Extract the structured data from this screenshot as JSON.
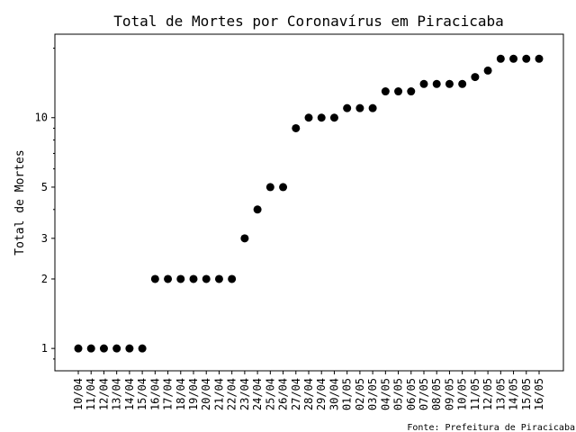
{
  "chart_data": {
    "type": "scatter",
    "title": "Total de Mortes por Coronavírus em Piracicaba",
    "xlabel": "",
    "ylabel": "Total de Mortes",
    "y_scale": "log",
    "ylim": [
      0.8,
      23
    ],
    "y_ticks": [
      1,
      2,
      3,
      5,
      10
    ],
    "grid": false,
    "marker_color": "#000000",
    "source_note": "Fonte: Prefeitura de Piracicaba",
    "x": [
      "10/04",
      "11/04",
      "12/04",
      "13/04",
      "14/04",
      "15/04",
      "16/04",
      "17/04",
      "18/04",
      "19/04",
      "20/04",
      "21/04",
      "22/04",
      "23/04",
      "24/04",
      "25/04",
      "26/04",
      "27/04",
      "28/04",
      "29/04",
      "30/04",
      "01/05",
      "02/05",
      "03/05",
      "04/05",
      "05/05",
      "06/05",
      "07/05",
      "08/05",
      "09/05",
      "10/05",
      "11/05",
      "12/05",
      "13/05",
      "14/05",
      "15/05",
      "16/05"
    ],
    "values": [
      1,
      1,
      1,
      1,
      1,
      1,
      2,
      2,
      2,
      2,
      2,
      2,
      2,
      3,
      4,
      5,
      5,
      9,
      10,
      10,
      10,
      11,
      11,
      11,
      13,
      13,
      13,
      14,
      14,
      14,
      14,
      15,
      16,
      18,
      18,
      18,
      18
    ]
  }
}
